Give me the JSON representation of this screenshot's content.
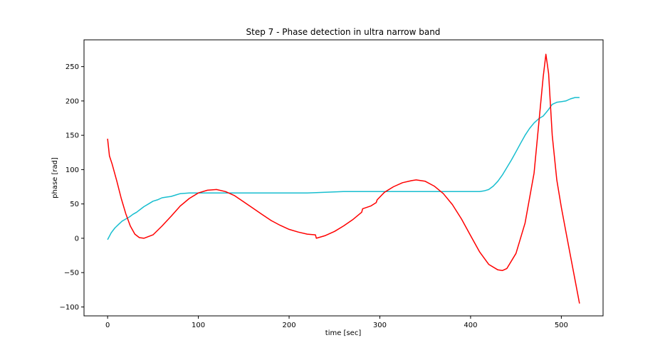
{
  "chart_data": {
    "type": "line",
    "title": "Step 7 - Phase detection in ultra narrow band",
    "xlabel": "time [sec]",
    "ylabel": "phase [rad]",
    "xlim": [
      -26,
      546
    ],
    "ylim": [
      -113,
      289
    ],
    "xticks": [
      0,
      100,
      200,
      300,
      400,
      500
    ],
    "yticks": [
      -100,
      -50,
      0,
      50,
      100,
      150,
      200,
      250
    ],
    "grid": false,
    "legend": "none",
    "series": [
      {
        "color": "#17becf",
        "x": [
          0,
          4,
          8,
          12,
          16,
          20,
          24,
          28,
          32,
          36,
          40,
          45,
          50,
          55,
          60,
          65,
          70,
          75,
          80,
          90,
          100,
          110,
          120,
          140,
          160,
          180,
          200,
          220,
          240,
          260,
          280,
          300,
          320,
          340,
          360,
          380,
          400,
          410,
          415,
          420,
          425,
          430,
          435,
          440,
          445,
          450,
          455,
          460,
          465,
          470,
          475,
          480,
          485,
          490,
          495,
          500,
          505,
          510,
          515,
          520
        ],
        "y": [
          -2,
          8,
          15,
          20,
          25,
          28,
          31,
          35,
          38,
          42,
          46,
          50,
          54,
          56,
          59,
          60,
          61,
          63,
          65,
          66,
          66,
          66,
          66,
          66,
          66,
          66,
          66,
          66,
          67,
          68,
          68,
          68,
          68,
          68,
          68,
          68,
          68,
          68,
          69,
          71,
          76,
          83,
          92,
          103,
          114,
          126,
          138,
          150,
          160,
          168,
          174,
          178,
          186,
          195,
          198,
          199,
          200,
          203,
          205,
          205
        ]
      },
      {
        "color": "#ff0000",
        "x": [
          0,
          2,
          5,
          10,
          15,
          20,
          25,
          30,
          35,
          40,
          50,
          60,
          70,
          80,
          90,
          100,
          110,
          120,
          130,
          140,
          150,
          160,
          170,
          180,
          190,
          200,
          210,
          220,
          229,
          230,
          240,
          250,
          260,
          270,
          280,
          281,
          290,
          296,
          297,
          305,
          315,
          325,
          335,
          340,
          350,
          360,
          370,
          380,
          390,
          400,
          410,
          420,
          430,
          435,
          440,
          450,
          460,
          470,
          475,
          480,
          483,
          486,
          490,
          495,
          500,
          505,
          510,
          515,
          520
        ],
        "y": [
          145,
          120,
          108,
          84,
          58,
          36,
          18,
          6,
          1,
          0,
          5,
          18,
          32,
          47,
          58,
          66,
          70,
          71,
          68,
          62,
          53,
          44,
          35,
          26,
          19,
          13,
          9,
          6,
          5,
          0,
          4,
          10,
          18,
          27,
          38,
          43,
          47,
          52,
          56,
          67,
          75,
          81,
          84,
          85,
          83,
          76,
          65,
          49,
          28,
          4,
          -20,
          -38,
          -46,
          -47,
          -44,
          -22,
          22,
          95,
          165,
          235,
          268,
          240,
          150,
          85,
          45,
          10,
          -25,
          -60,
          -95
        ]
      }
    ]
  }
}
